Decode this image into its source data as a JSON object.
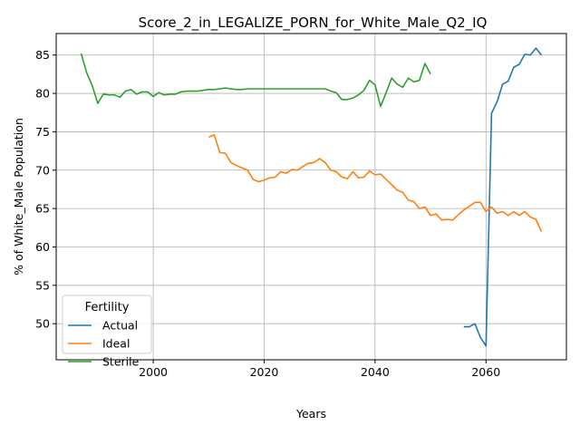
{
  "chart_data": {
    "type": "line",
    "title": "Score_2_in_LEGALIZE_PORN_for_White_Male_Q2_IQ",
    "xlabel": "Years",
    "ylabel": "% of White_Male Population",
    "xlim": [
      1982.5,
      2074.5
    ],
    "ylim": [
      45.3,
      87.8
    ],
    "xticks": [
      2000,
      2020,
      2040,
      2060
    ],
    "yticks": [
      50,
      55,
      60,
      65,
      70,
      75,
      80,
      85
    ],
    "grid": true,
    "legend": {
      "title": "Fertility",
      "placement": "lower-left"
    },
    "series": [
      {
        "name": "Actual",
        "color": "#1f77b4",
        "x": [
          2056,
          2057,
          2058,
          2059,
          2060,
          2061,
          2062,
          2063,
          2064,
          2065,
          2066,
          2067,
          2068,
          2069,
          2070
        ],
        "y": [
          49.6,
          49.6,
          50.0,
          48.2,
          47.1,
          77.4,
          78.9,
          81.2,
          81.6,
          83.4,
          83.8,
          85.1,
          85.0,
          85.9,
          85.0
        ]
      },
      {
        "name": "Ideal",
        "color": "#ff7f0e",
        "x": [
          2010,
          2011,
          2012,
          2013,
          2014,
          2015,
          2016,
          2017,
          2018,
          2019,
          2020,
          2021,
          2022,
          2023,
          2024,
          2025,
          2026,
          2027,
          2028,
          2029,
          2030,
          2031,
          2032,
          2033,
          2034,
          2035,
          2036,
          2037,
          2038,
          2039,
          2040,
          2041,
          2042,
          2043,
          2044,
          2045,
          2046,
          2047,
          2048,
          2049,
          2050,
          2051,
          2052,
          2053,
          2054,
          2055,
          2056,
          2057,
          2058,
          2059,
          2060,
          2061,
          2062,
          2063,
          2064,
          2065,
          2066,
          2067,
          2068,
          2069,
          2070
        ],
        "y": [
          74.3,
          74.6,
          72.3,
          72.2,
          71.0,
          70.6,
          70.3,
          70.0,
          68.8,
          68.5,
          68.7,
          69.0,
          69.1,
          69.8,
          69.6,
          70.1,
          70.0,
          70.5,
          70.9,
          71.0,
          71.5,
          71.0,
          70.0,
          69.8,
          69.1,
          68.9,
          69.8,
          69.0,
          69.1,
          69.9,
          69.4,
          69.5,
          68.8,
          68.1,
          67.4,
          67.1,
          66.1,
          65.9,
          65.0,
          65.2,
          64.1,
          64.3,
          63.5,
          63.6,
          63.5,
          64.2,
          64.8,
          65.3,
          65.8,
          65.8,
          64.6,
          65.2,
          64.4,
          64.6,
          64.1,
          64.6,
          64.1,
          64.6,
          63.9,
          63.6,
          62.0
        ]
      },
      {
        "name": "Sterile",
        "color": "#2ca02c",
        "x": [
          1987,
          1988,
          1989,
          1990,
          1991,
          1992,
          1993,
          1994,
          1995,
          1996,
          1997,
          1998,
          1999,
          2000,
          2001,
          2002,
          2003,
          2004,
          2005,
          2006,
          2007,
          2008,
          2009,
          2010,
          2011,
          2012,
          2013,
          2014,
          2015,
          2016,
          2017,
          2018,
          2019,
          2020,
          2021,
          2022,
          2023,
          2024,
          2025,
          2026,
          2027,
          2028,
          2029,
          2030,
          2031,
          2032,
          2033,
          2034,
          2035,
          2036,
          2037,
          2038,
          2039,
          2040,
          2041,
          2042,
          2043,
          2044,
          2045,
          2046,
          2047,
          2048,
          2049,
          2050
        ],
        "y": [
          85.2,
          82.7,
          81.0,
          78.7,
          79.9,
          79.8,
          79.8,
          79.5,
          80.3,
          80.5,
          79.9,
          80.2,
          80.2,
          79.6,
          80.1,
          79.8,
          79.9,
          79.9,
          80.2,
          80.3,
          80.3,
          80.3,
          80.4,
          80.5,
          80.5,
          80.6,
          80.7,
          80.6,
          80.5,
          80.5,
          80.6,
          80.6,
          80.6,
          80.6,
          80.6,
          80.6,
          80.6,
          80.6,
          80.6,
          80.6,
          80.6,
          80.6,
          80.6,
          80.6,
          80.6,
          80.3,
          80.1,
          79.2,
          79.2,
          79.4,
          79.8,
          80.4,
          81.7,
          81.1,
          78.3,
          80.1,
          82.0,
          81.2,
          80.8,
          82.0,
          81.5,
          81.7,
          83.9,
          82.5
        ]
      }
    ]
  }
}
